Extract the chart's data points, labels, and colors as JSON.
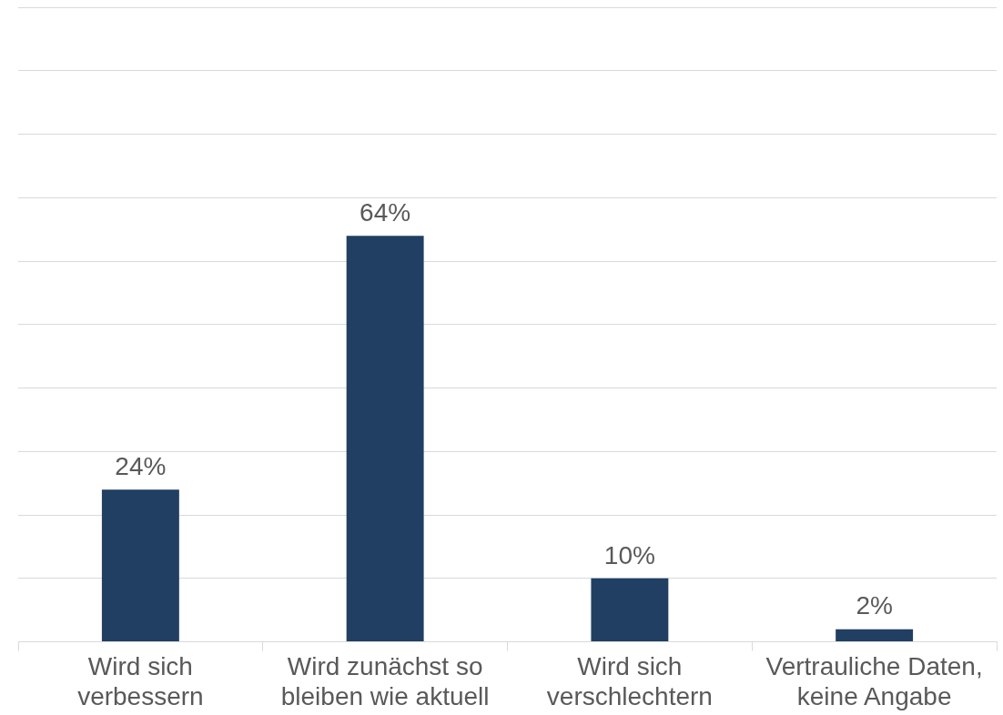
{
  "chart_data": {
    "type": "bar",
    "categories": [
      "Wird sich verbessern",
      "Wird zunächst so bleiben wie aktuell",
      "Wird sich verschlechtern",
      "Vertrauliche Daten, keine Angabe"
    ],
    "values": [
      24,
      64,
      10,
      2
    ],
    "value_labels": [
      "24%",
      "64%",
      "10%",
      "2%"
    ],
    "color": "#203f62",
    "ylim": [
      0,
      100
    ],
    "yticks": [
      {
        "value": 0,
        "label": null
      },
      {
        "value": 10,
        "label": null
      },
      {
        "value": 20,
        "label": null
      },
      {
        "value": 30,
        "label": null
      },
      {
        "value": 40,
        "label": null
      },
      {
        "value": 50,
        "label": null
      },
      {
        "value": 60,
        "label": null
      },
      {
        "value": 70,
        "label": null
      },
      {
        "value": 80,
        "label": null
      },
      {
        "value": 90,
        "label": null
      },
      {
        "value": 100,
        "label": null
      }
    ],
    "grid": "y",
    "tick_labels": "x",
    "legend": false
  }
}
